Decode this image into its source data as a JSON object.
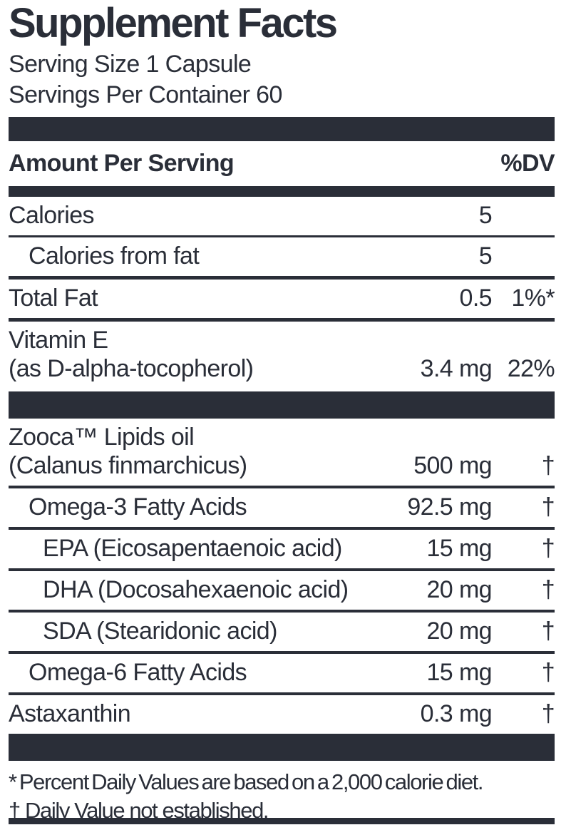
{
  "title": "Supplement Facts",
  "serving": {
    "size": "Serving Size 1 Capsule",
    "per_container": "Servings Per Container 60"
  },
  "header": {
    "amount_label": "Amount Per Serving",
    "dv_label": "%DV"
  },
  "rows": [
    {
      "id": "calories",
      "lines": [
        "Calories",
        ""
      ],
      "amount": "5",
      "dv": "",
      "indent": 0
    },
    {
      "id": "calories-from-fat",
      "lines": [
        "Calories from fat",
        ""
      ],
      "amount": "5",
      "dv": "",
      "indent": 1
    },
    {
      "id": "total-fat",
      "lines": [
        "Total Fat",
        ""
      ],
      "amount": "0.5",
      "dv": "1%*",
      "indent": 0
    },
    {
      "id": "vitamin-e",
      "lines": [
        "Vitamin E",
        "(as D-alpha-tocopherol)"
      ],
      "amount": "3.4 mg",
      "dv": "22%",
      "indent": 0
    },
    {
      "id": "zooca-lipids-oil",
      "lines": [
        "Zooca™ Lipids oil",
        "(Calanus finmarchicus)"
      ],
      "amount": "500 mg",
      "dv": "†",
      "indent": 0
    },
    {
      "id": "omega-3-fatty-acids",
      "lines": [
        "Omega-3 Fatty Acids",
        ""
      ],
      "amount": "92.5 mg",
      "dv": "†",
      "indent": 1
    },
    {
      "id": "epa",
      "lines": [
        "EPA (Eicosapentaenoic acid)",
        ""
      ],
      "amount": "15 mg",
      "dv": "†",
      "indent": 2
    },
    {
      "id": "dha",
      "lines": [
        "DHA (Docosahexaenoic acid)",
        ""
      ],
      "amount": "20 mg",
      "dv": "†",
      "indent": 2
    },
    {
      "id": "sda",
      "lines": [
        "SDA (Stearidonic acid)",
        ""
      ],
      "amount": "20 mg",
      "dv": "†",
      "indent": 2
    },
    {
      "id": "omega-6-fatty-acids",
      "lines": [
        "Omega-6 Fatty Acids",
        ""
      ],
      "amount": "15 mg",
      "dv": "†",
      "indent": 1
    },
    {
      "id": "astaxanthin",
      "lines": [
        "Astaxanthin",
        ""
      ],
      "amount": "0.3 mg",
      "dv": "†",
      "indent": 0
    }
  ],
  "footnotes": [
    "* Percent Daily Values are based on a 2,000 calorie diet.",
    "† Daily Value not established."
  ],
  "colors": {
    "ink": "#2a2e38",
    "background": "#ffffff"
  }
}
